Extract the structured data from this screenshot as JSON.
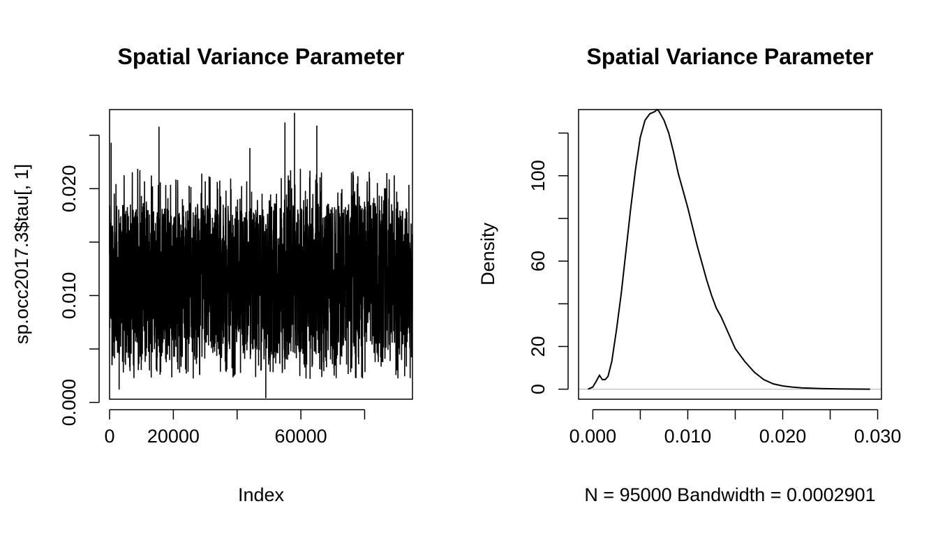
{
  "chart_data": [
    {
      "type": "line",
      "title": "Spatial Variance Parameter",
      "xlabel": "Index",
      "ylabel": "sp.occ2017.3$tau[, 1]",
      "xlim": [
        0,
        95000
      ],
      "ylim": [
        0.0003,
        0.0274
      ],
      "xticks": [
        0,
        20000,
        40000,
        60000,
        80000
      ],
      "xtick_labels": [
        "0",
        "20000",
        "",
        "60000",
        ""
      ],
      "yticks": [
        0.0,
        0.005,
        0.01,
        0.015,
        0.02,
        0.025
      ],
      "ytick_labels": [
        "0.000",
        "",
        "0.010",
        "",
        "0.020",
        ""
      ],
      "n_samples": 95000,
      "band_summary": {
        "x": [
          0,
          10000,
          20000,
          30000,
          40000,
          47000,
          50000,
          60000,
          70000,
          80000,
          95000
        ],
        "typical_low": [
          0.004,
          0.004,
          0.004,
          0.004,
          0.004,
          0.004,
          0.004,
          0.004,
          0.004,
          0.004,
          0.004
        ],
        "typical_high": [
          0.0185,
          0.019,
          0.018,
          0.0185,
          0.0185,
          0.018,
          0.019,
          0.019,
          0.0185,
          0.019,
          0.018
        ]
      },
      "notable_spikes": [
        {
          "x": 500,
          "y": 0.0243
        },
        {
          "x": 15500,
          "y": 0.0258
        },
        {
          "x": 44000,
          "y": 0.0238
        },
        {
          "x": 55000,
          "y": 0.0262
        },
        {
          "x": 58000,
          "y": 0.0271
        },
        {
          "x": 65000,
          "y": 0.0259
        },
        {
          "x": 49000,
          "y": 0.0004
        },
        {
          "x": 3000,
          "y": 0.0012
        }
      ],
      "grid": false
    },
    {
      "type": "line",
      "title": "Spatial Variance Parameter",
      "xlabel": "N = 95000   Bandwidth = 0.0002901",
      "ylabel": "Density",
      "xlim": [
        -0.0015,
        0.0304
      ],
      "ylim": [
        -4.7,
        131
      ],
      "xticks": [
        0.0,
        0.005,
        0.01,
        0.015,
        0.02,
        0.025,
        0.03
      ],
      "xtick_labels": [
        "0.000",
        "",
        "0.010",
        "",
        "0.020",
        "",
        "0.030"
      ],
      "yticks": [
        0,
        20,
        40,
        60,
        80,
        100,
        120
      ],
      "ytick_labels": [
        "0",
        "20",
        "",
        "60",
        "",
        "100",
        ""
      ],
      "x": [
        -0.0005,
        0.0,
        0.0004,
        0.0007,
        0.001,
        0.0013,
        0.0016,
        0.002,
        0.0025,
        0.003,
        0.0035,
        0.004,
        0.0045,
        0.005,
        0.0055,
        0.006,
        0.0065,
        0.0068,
        0.007,
        0.0075,
        0.008,
        0.0085,
        0.009,
        0.0095,
        0.01,
        0.0105,
        0.011,
        0.0115,
        0.012,
        0.0125,
        0.013,
        0.0135,
        0.014,
        0.0145,
        0.015,
        0.016,
        0.017,
        0.018,
        0.019,
        0.02,
        0.021,
        0.022,
        0.024,
        0.026,
        0.028,
        0.0292
      ],
      "y": [
        0,
        1,
        4,
        6.5,
        4.5,
        4.5,
        6,
        13,
        28,
        45,
        65,
        85,
        103,
        118,
        126,
        129,
        130,
        131,
        130,
        126,
        120,
        111,
        101,
        93,
        85,
        76,
        67,
        59,
        51,
        44,
        38,
        34,
        29,
        24,
        19,
        13,
        8,
        4.5,
        2.5,
        1.5,
        1,
        0.6,
        0.3,
        0.15,
        0.05,
        0
      ],
      "baseline": 0,
      "grid": false
    }
  ]
}
